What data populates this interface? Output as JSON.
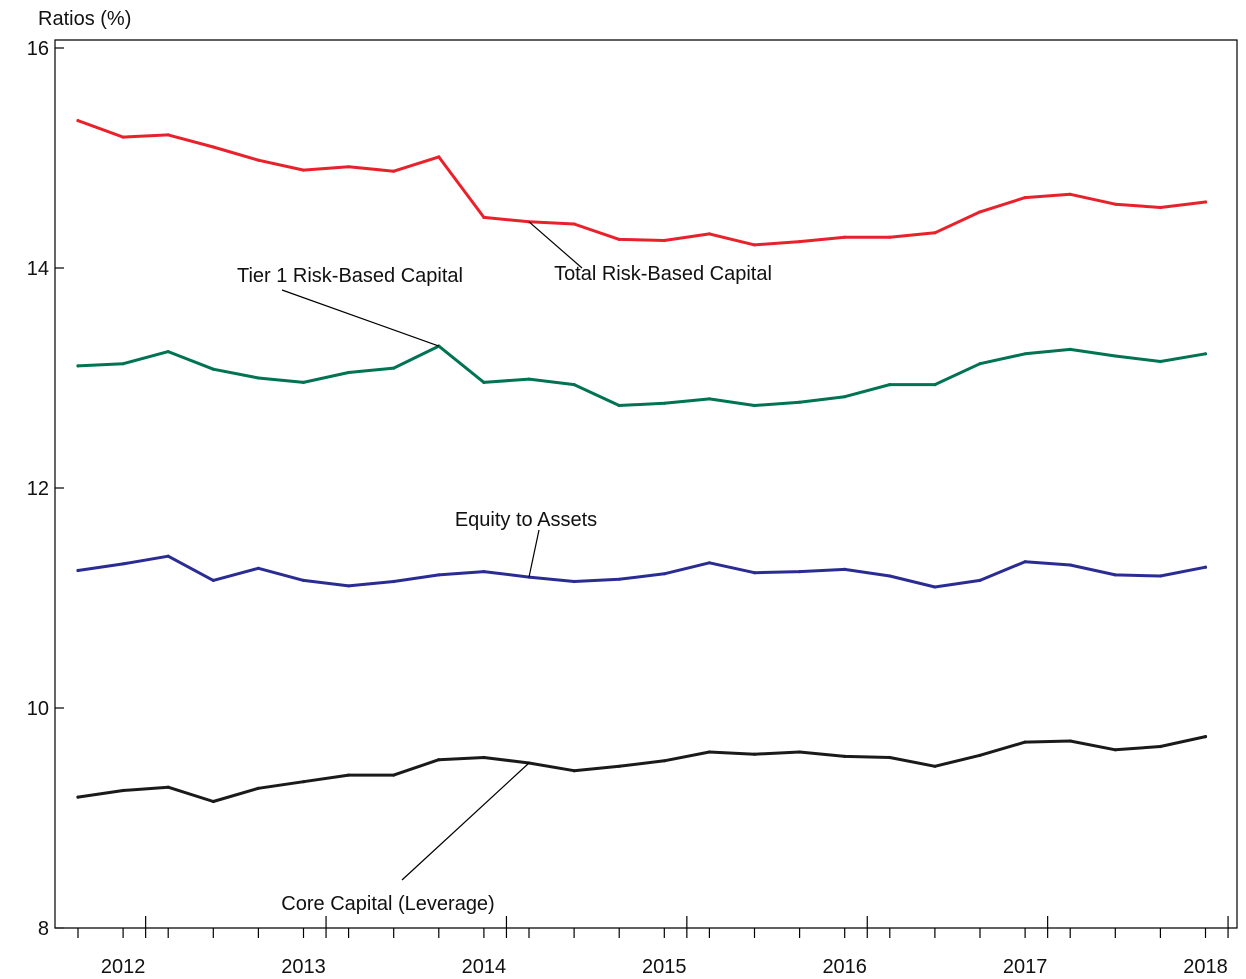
{
  "chart_data": {
    "type": "line",
    "title": "",
    "ylabel": "Ratios (%)",
    "xlabel": "",
    "ylim": [
      8,
      16.1
    ],
    "y_ticks": [
      "8",
      "10",
      "12",
      "14",
      "16"
    ],
    "x_tick_labels": [
      "2012",
      "2013",
      "2014",
      "2015",
      "2016",
      "2017",
      "2018"
    ],
    "grid": false,
    "x": [
      "2011 Q4",
      "2012 Q1",
      "2012 Q2",
      "2012 Q3",
      "2012 Q4",
      "2013 Q1",
      "2013 Q2",
      "2013 Q3",
      "2013 Q4",
      "2014 Q1",
      "2014 Q2",
      "2014 Q3",
      "2014 Q4",
      "2015 Q1",
      "2015 Q2",
      "2015 Q3",
      "2015 Q4",
      "2016 Q1",
      "2016 Q2",
      "2016 Q3",
      "2016 Q4",
      "2017 Q1",
      "2017 Q2",
      "2017 Q3",
      "2017 Q4",
      "2018 Q1"
    ],
    "series": [
      {
        "name": "Total Risk-Based Capital",
        "color": "#e8212b",
        "values": [
          15.34,
          15.19,
          15.21,
          15.1,
          14.98,
          14.89,
          14.92,
          14.88,
          15.01,
          14.46,
          14.42,
          14.4,
          14.26,
          14.25,
          14.31,
          14.21,
          14.24,
          14.28,
          14.28,
          14.32,
          14.51,
          14.64,
          14.67,
          14.58,
          14.55,
          14.6
        ]
      },
      {
        "name": "Tier 1 Risk-Based Capital",
        "color": "#007352",
        "values": [
          13.11,
          13.13,
          13.24,
          13.08,
          13.0,
          12.96,
          13.05,
          13.09,
          13.29,
          12.96,
          12.99,
          12.94,
          12.75,
          12.77,
          12.81,
          12.75,
          12.78,
          12.83,
          12.94,
          12.94,
          13.13,
          13.22,
          13.26,
          13.2,
          13.15,
          13.22
        ]
      },
      {
        "name": "Equity to Assets",
        "color": "#2b2c93",
        "values": [
          11.25,
          11.31,
          11.38,
          11.16,
          11.27,
          11.16,
          11.11,
          11.15,
          11.21,
          11.24,
          11.19,
          11.15,
          11.17,
          11.22,
          11.32,
          11.23,
          11.24,
          11.26,
          11.2,
          11.1,
          11.16,
          11.33,
          11.3,
          11.21,
          11.2,
          11.28
        ]
      },
      {
        "name": "Core Capital (Leverage)",
        "color": "#1a1a1a",
        "values": [
          9.19,
          9.25,
          9.28,
          9.15,
          9.27,
          9.33,
          9.39,
          9.39,
          9.53,
          9.55,
          9.5,
          9.43,
          9.47,
          9.52,
          9.6,
          9.58,
          9.6,
          9.56,
          9.55,
          9.47,
          9.57,
          9.69,
          9.7,
          9.62,
          9.65,
          9.74
        ]
      }
    ],
    "annotations": [
      {
        "text": "Total Risk-Based Capital",
        "series": "Total Risk-Based Capital",
        "point": 10
      },
      {
        "text": "Tier 1 Risk-Based Capital",
        "series": "Tier 1 Risk-Based Capital",
        "point": 8
      },
      {
        "text": "Equity to Assets",
        "series": "Equity to Assets",
        "point": 10
      },
      {
        "text": "Core Capital (Leverage)",
        "series": "Core Capital (Leverage)",
        "point": 10
      }
    ]
  }
}
